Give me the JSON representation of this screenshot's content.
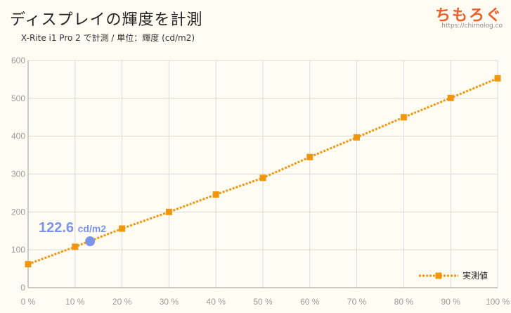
{
  "header": {
    "title": "ディスプレイの輝度を計測",
    "subtitle": "X-Rite i1 Pro 2 で計測 / 単位：輝度 (cd/m2)",
    "brand": "ちもろぐ",
    "brand_url": "https://chimolog.co"
  },
  "colors": {
    "series": "#f0960e",
    "highlight": "#7b93e8",
    "grid": "#d9d9d9",
    "axis": "#9a9a9a"
  },
  "chart_data": {
    "type": "line",
    "x": [
      0,
      10,
      20,
      30,
      40,
      50,
      60,
      70,
      80,
      90,
      100
    ],
    "xtick_labels": [
      "0 %",
      "10 %",
      "20 %",
      "30 %",
      "40 %",
      "50 %",
      "60 %",
      "70 %",
      "80 %",
      "90 %",
      "100 %"
    ],
    "series": [
      {
        "name": "実測値",
        "values": [
          62,
          108,
          156,
          200,
          246,
          290,
          345,
          397,
          450,
          501,
          553
        ]
      }
    ],
    "highlight": {
      "x": 13.2,
      "y": 122.6,
      "label_value": "122.6",
      "label_unit": "cd/m2"
    },
    "xlim": [
      0,
      100
    ],
    "ylim": [
      0,
      600
    ],
    "yticks": [
      0,
      100,
      200,
      300,
      400,
      500,
      600
    ],
    "grid": true,
    "legend_position": "bottom-right"
  }
}
